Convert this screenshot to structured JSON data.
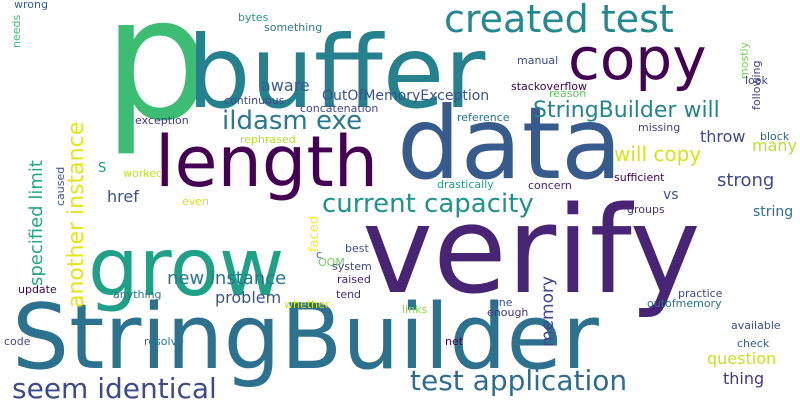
{
  "words": [
    {
      "text": "p",
      "color": "#3dbc74"
    },
    {
      "text": "buffer",
      "color": "#26818e"
    },
    {
      "text": "created test",
      "color": "#23898e"
    },
    {
      "text": "copy",
      "color": "#440154"
    },
    {
      "text": "length",
      "color": "#440154"
    },
    {
      "text": "data",
      "color": "#375b8d"
    },
    {
      "text": "grow",
      "color": "#1fa187"
    },
    {
      "text": "verify",
      "color": "#482475"
    },
    {
      "text": "StringBuilder",
      "color": "#2c718e"
    },
    {
      "text": "seem identical",
      "color": "#3e4a89"
    },
    {
      "text": "test application",
      "color": "#2f6c8e"
    },
    {
      "text": "current capacity",
      "color": "#20938c"
    },
    {
      "text": "another instance",
      "color": "#e5e419"
    },
    {
      "text": "specified limit",
      "color": "#22a884"
    },
    {
      "text": "ildasm exe",
      "color": "#2a788e"
    },
    {
      "text": "OutOfMemoryException",
      "color": "#3b528b"
    },
    {
      "text": "StringBuilder will",
      "color": "#25848e"
    },
    {
      "text": "will copy",
      "color": "#d8e219"
    },
    {
      "text": "strong",
      "color": "#3e4989"
    },
    {
      "text": "throw",
      "color": "#3f4889"
    },
    {
      "text": "many",
      "color": "#bddf26"
    },
    {
      "text": "block",
      "color": "#33628d"
    },
    {
      "text": "new instance",
      "color": "#2a768e"
    },
    {
      "text": "problem",
      "color": "#38588c"
    },
    {
      "text": "question",
      "color": "#c8e020"
    },
    {
      "text": "thing",
      "color": "#453781"
    },
    {
      "text": "memory",
      "color": "#404688"
    },
    {
      "text": "href",
      "color": "#3b528b"
    },
    {
      "text": "vs",
      "color": "#3b528b"
    },
    {
      "text": "string",
      "color": "#2e6f8e"
    },
    {
      "text": "faced",
      "color": "#fde725"
    },
    {
      "text": "continuous",
      "color": "#3e4989"
    },
    {
      "text": "concatenation",
      "color": "#3f4889"
    },
    {
      "text": "exception",
      "color": "#443a83"
    },
    {
      "text": "reference",
      "color": "#2b758e"
    },
    {
      "text": "missing",
      "color": "#433e85"
    },
    {
      "text": "rephrased",
      "color": "#b5de2b"
    },
    {
      "text": "worked",
      "color": "#bddf26"
    },
    {
      "text": "S",
      "color": "#1f998a"
    },
    {
      "text": "stackoverflow",
      "color": "#440154"
    },
    {
      "text": "reason",
      "color": "#5ec962"
    },
    {
      "text": "manual",
      "color": "#3e4989"
    },
    {
      "text": "mostly",
      "color": "#74d055"
    },
    {
      "text": "following",
      "color": "#443a83"
    },
    {
      "text": "look",
      "color": "#3f4889"
    },
    {
      "text": "aware",
      "color": "#375b8d"
    },
    {
      "text": "bytes",
      "color": "#1f968b"
    },
    {
      "text": "something",
      "color": "#2a788e"
    },
    {
      "text": "needs",
      "color": "#3dbc74"
    },
    {
      "text": "wrong",
      "color": "#34618d"
    },
    {
      "text": "caused",
      "color": "#3b528b"
    },
    {
      "text": "drastically",
      "color": "#1fa088"
    },
    {
      "text": "concern",
      "color": "#481f70"
    },
    {
      "text": "sufficient",
      "color": "#440154"
    },
    {
      "text": "groups",
      "color": "#472f7d"
    },
    {
      "text": "even",
      "color": "#d8e219"
    },
    {
      "text": "OOM",
      "color": "#6ece58"
    },
    {
      "text": "c",
      "color": "#2f6c8e"
    },
    {
      "text": "best",
      "color": "#3b528b"
    },
    {
      "text": "system",
      "color": "#3e4989"
    },
    {
      "text": "raised",
      "color": "#481f70"
    },
    {
      "text": "tend",
      "color": "#472f7d"
    },
    {
      "text": "update",
      "color": "#440154"
    },
    {
      "text": "anything",
      "color": "#2b748e"
    },
    {
      "text": "whether",
      "color": "#d2e21b"
    },
    {
      "text": "links",
      "color": "#8bd646"
    },
    {
      "text": "one",
      "color": "#3b528b"
    },
    {
      "text": "enough",
      "color": "#46327e"
    },
    {
      "text": "outofmemory",
      "color": "#2c718e"
    },
    {
      "text": "practice",
      "color": "#3e4989"
    },
    {
      "text": "available",
      "color": "#3b528b"
    },
    {
      "text": "check",
      "color": "#34618d"
    },
    {
      "text": "code",
      "color": "#3f4889"
    },
    {
      "text": "resolve",
      "color": "#2b758e"
    },
    {
      "text": "net",
      "color": "#440154"
    }
  ]
}
